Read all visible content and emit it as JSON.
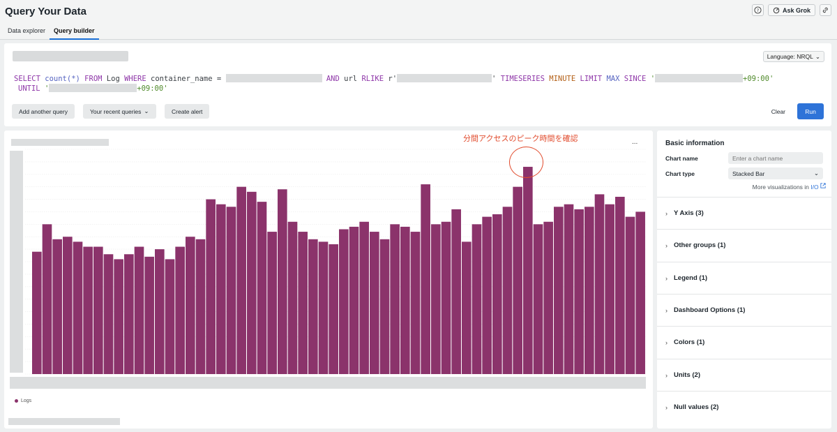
{
  "header": {
    "title": "Query Your Data",
    "tabs": [
      {
        "label": "Data explorer",
        "active": false
      },
      {
        "label": "Query builder",
        "active": true
      }
    ],
    "help_icon": "question-circle-icon",
    "ask_grok_label": "Ask Grok",
    "link_icon": "link-icon"
  },
  "query": {
    "language_label": "Language: NRQL",
    "nrql": {
      "select": "SELECT",
      "fn": "count(*)",
      "from": "FROM",
      "table": "Log",
      "where": "WHERE",
      "field1": "container_name",
      "eq": "=",
      "and": "AND",
      "field2": "url",
      "rlike": "RLIKE",
      "rprefix": "r'",
      "quote_end": "'",
      "timeseries": "TIMESERIES",
      "minute": "MINUTE",
      "limit": "LIMIT",
      "max": "MAX",
      "since": "SINCE",
      "since_quote": "'",
      "tz1": "+09:00'",
      "until": "UNTIL",
      "until_quote": "'",
      "tz2": "+09:00'"
    },
    "buttons": {
      "add_query": "Add another query",
      "recent_queries": "Your recent queries",
      "create_alert": "Create alert",
      "clear": "Clear",
      "run": "Run"
    }
  },
  "chart": {
    "annotation": "分間アクセスのピーク時間を確認",
    "more_label": "...",
    "legend_label": "Logs",
    "bar_color": "#8b336b"
  },
  "chart_data": {
    "type": "bar",
    "title": "",
    "xlabel": "",
    "ylabel": "",
    "series": [
      {
        "name": "Logs",
        "values": [
          49,
          60,
          54,
          55,
          53,
          51,
          51,
          48,
          46,
          48,
          51,
          47,
          50,
          46,
          51,
          55,
          54,
          70,
          68,
          67,
          75,
          73,
          69,
          57,
          74,
          61,
          57,
          54,
          53,
          52,
          58,
          59,
          61,
          57,
          54,
          60,
          59,
          57,
          76,
          60,
          61,
          66,
          53,
          60,
          63,
          64,
          67,
          75,
          83,
          60,
          61,
          67,
          68,
          66,
          67,
          72,
          68,
          71,
          63,
          65
        ]
      }
    ],
    "ylim": [
      0,
      90
    ],
    "grid": true,
    "legend": "bottom-left"
  },
  "side": {
    "title": "Basic information",
    "chart_name_label": "Chart name",
    "chart_name_placeholder": "Enter a chart name",
    "chart_type_label": "Chart type",
    "chart_type_value": "Stacked Bar",
    "more_vis_prefix": "More visualizations in",
    "more_vis_link": "I/O",
    "sections": [
      {
        "label": "Y Axis (3)"
      },
      {
        "label": "Other groups (1)"
      },
      {
        "label": "Legend (1)"
      },
      {
        "label": "Dashboard Options (1)"
      },
      {
        "label": "Colors (1)"
      },
      {
        "label": "Units (2)"
      },
      {
        "label": "Null values (2)"
      }
    ]
  }
}
